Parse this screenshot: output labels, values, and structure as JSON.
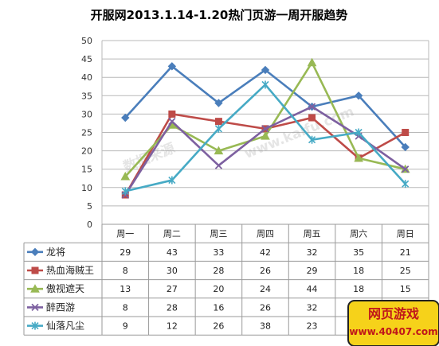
{
  "chart_data": {
    "type": "line",
    "title": "开服网2013.1.14-1.20热门页游一周开服趋势",
    "categories": [
      "周一",
      "周二",
      "周三",
      "周四",
      "周五",
      "周六",
      "周日"
    ],
    "ylim": [
      0,
      50
    ],
    "yticks": [
      0,
      5,
      10,
      15,
      20,
      25,
      30,
      35,
      40,
      45,
      50
    ],
    "grid": true,
    "legend": "bottom-left data table",
    "series": [
      {
        "name": "龙将",
        "values": [
          29,
          43,
          33,
          42,
          32,
          35,
          21
        ],
        "color": "#4a7ebb",
        "marker": "diamond"
      },
      {
        "name": "热血海贼王",
        "values": [
          8,
          30,
          28,
          26,
          29,
          18,
          25
        ],
        "color": "#be4b48",
        "marker": "square"
      },
      {
        "name": "傲视遮天",
        "values": [
          13,
          27,
          20,
          24,
          44,
          18,
          15
        ],
        "color": "#98b954",
        "marker": "triangle"
      },
      {
        "name": "醉西游",
        "values": [
          8,
          28,
          16,
          26,
          32,
          24,
          15
        ],
        "color": "#7d60a0",
        "marker": "x"
      },
      {
        "name": "仙落凡尘",
        "values": [
          9,
          12,
          26,
          38,
          23,
          25,
          11
        ],
        "color": "#46aac5",
        "marker": "star"
      }
    ]
  },
  "watermark": {
    "cn": "数据来源",
    "url": "www.kaifu.com"
  },
  "badge": {
    "line1": "网页游戏",
    "line2": "www.40407.com",
    "bg": "#f6d21a",
    "fg": "#c0161a"
  }
}
